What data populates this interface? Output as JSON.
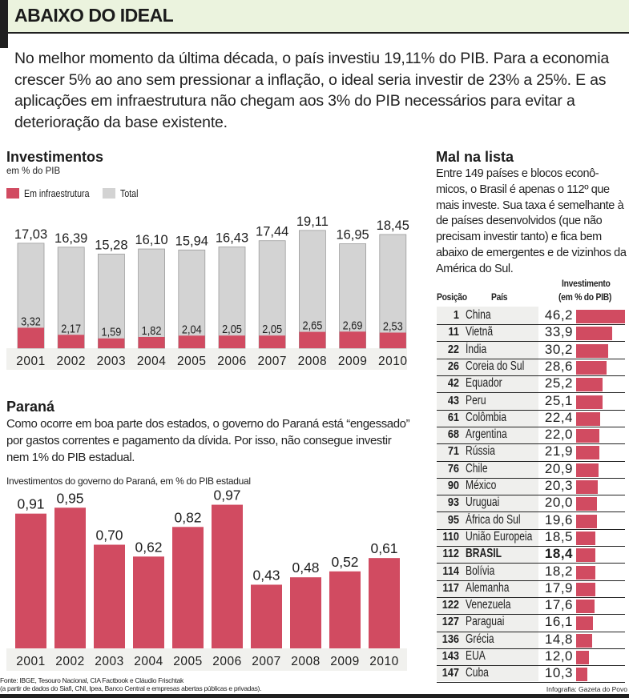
{
  "header": {
    "title": "ABAIXO DO IDEAL",
    "intro": "No melhor momento da última década, o país investiu 19,11% do PIB. Para a economia crescer 5% ao ano sem pressionar a inflação, o ideal seria investir de 23% a 25%. E as aplicações em infraestrutura não chegam aos 3% do PIB necessários para evitar a deterioração da base existente."
  },
  "colors": {
    "infra": "#d14b61",
    "total": "#d3d3d3",
    "axis_band": "#f1f1ee",
    "header_band": "#ebf3de"
  },
  "investimentos": {
    "title": "Investimentos",
    "subtitle": "em % do PIB",
    "legend": [
      {
        "label": "Em infraestrutura",
        "color": "#d14b61"
      },
      {
        "label": "Total",
        "color": "#d3d3d3"
      }
    ]
  },
  "parana": {
    "title": "Paraná",
    "text": "Como ocorre em boa parte dos estados, o governo do Paraná está “engessado” por gastos correntes e pagamento da dívida. Por isso, não consegue investir nem 1% do PIB estadual.",
    "chart_caption": "Investimentos do governo do Paraná, em % do PIB estadual"
  },
  "ranking": {
    "title": "Mal na lista",
    "text": "Entre 149 países e blocos econô-micos, o Brasil é apenas o 112º que mais investe. Sua taxa é semelhante à de países desenvolvidos (que não precisam investir tanto) e fica bem abaixo de emergentes e de vizinhos da América do Sul.",
    "col_position": "Posição",
    "col_country": "País",
    "col_invest_1": "Investimento",
    "col_invest_2": "(em % do PIB)"
  },
  "footer": {
    "source_1": "Fonte: IBGE, Tesouro Nacional, CIA Factbook e Cláudio Frischtak",
    "source_2": "(a partir de dados do Siafi, CNI, Ipea, Banco Central e empresas abertas públicas e privadas).",
    "credit": "Infografia: Gazeta do Povo"
  },
  "chart_data": [
    {
      "type": "bar",
      "title": "Investimentos",
      "subtitle": "em % do PIB",
      "categories": [
        "2001",
        "2002",
        "2003",
        "2004",
        "2005",
        "2006",
        "2007",
        "2008",
        "2009",
        "2010"
      ],
      "series": [
        {
          "name": "Total",
          "values": [
            17.03,
            16.39,
            15.28,
            16.1,
            15.94,
            16.43,
            17.44,
            19.11,
            16.95,
            18.45
          ],
          "labels": [
            "17,03",
            "16,39",
            "15,28",
            "16,10",
            "15,94",
            "16,43",
            "17,44",
            "19,11",
            "16,95",
            "18,45"
          ]
        },
        {
          "name": "Em infraestrutura",
          "values": [
            3.32,
            2.17,
            1.59,
            1.82,
            2.04,
            2.05,
            2.05,
            2.65,
            2.69,
            2.53
          ],
          "labels": [
            "3,32",
            "2,17",
            "1,59",
            "1,82",
            "2,04",
            "2,05",
            "2,05",
            "2,65",
            "2,69",
            "2,53"
          ]
        }
      ],
      "xlabel": "",
      "ylabel": "",
      "ylim": [
        0,
        20
      ],
      "grid": false,
      "legend": "top-left"
    },
    {
      "type": "bar",
      "title": "Investimentos do governo do Paraná, em % do PIB estadual",
      "categories": [
        "2001",
        "2002",
        "2003",
        "2004",
        "2005",
        "2006",
        "2007",
        "2008",
        "2009",
        "2010"
      ],
      "values": [
        0.91,
        0.95,
        0.7,
        0.62,
        0.82,
        0.97,
        0.43,
        0.48,
        0.52,
        0.61
      ],
      "labels": [
        "0,91",
        "0,95",
        "0,70",
        "0,62",
        "0,82",
        "0,97",
        "0,43",
        "0,48",
        "0,52",
        "0,61"
      ],
      "xlabel": "",
      "ylabel": "",
      "ylim": [
        0,
        1
      ],
      "grid": false
    },
    {
      "type": "table",
      "title": "Mal na lista",
      "columns": [
        "Posição",
        "País",
        "Investimento (em % do PIB)"
      ],
      "rows": [
        {
          "pos": "1",
          "country": "China",
          "value": 46.2,
          "label": "46,2"
        },
        {
          "pos": "11",
          "country": "Vietnã",
          "value": 33.9,
          "label": "33,9"
        },
        {
          "pos": "22",
          "country": "Índia",
          "value": 30.2,
          "label": "30,2"
        },
        {
          "pos": "26",
          "country": "Coreia do Sul",
          "value": 28.6,
          "label": "28,6"
        },
        {
          "pos": "42",
          "country": "Equador",
          "value": 25.2,
          "label": "25,2"
        },
        {
          "pos": "43",
          "country": "Peru",
          "value": 25.1,
          "label": "25,1"
        },
        {
          "pos": "61",
          "country": "Colômbia",
          "value": 22.4,
          "label": "22,4"
        },
        {
          "pos": "68",
          "country": "Argentina",
          "value": 22.0,
          "label": "22,0"
        },
        {
          "pos": "71",
          "country": "Rússia",
          "value": 21.9,
          "label": "21,9"
        },
        {
          "pos": "76",
          "country": "Chile",
          "value": 20.9,
          "label": "20,9"
        },
        {
          "pos": "90",
          "country": "México",
          "value": 20.3,
          "label": "20,3"
        },
        {
          "pos": "93",
          "country": "Uruguai",
          "value": 20.0,
          "label": "20,0"
        },
        {
          "pos": "95",
          "country": "África do Sul",
          "value": 19.6,
          "label": "19,6"
        },
        {
          "pos": "110",
          "country": "União Europeia",
          "value": 18.5,
          "label": "18,5"
        },
        {
          "pos": "112",
          "country": "BRASIL",
          "value": 18.4,
          "label": "18,4",
          "highlight": true
        },
        {
          "pos": "114",
          "country": "Bolívia",
          "value": 18.2,
          "label": "18,2"
        },
        {
          "pos": "117",
          "country": "Alemanha",
          "value": 17.9,
          "label": "17,9"
        },
        {
          "pos": "122",
          "country": "Venezuela",
          "value": 17.6,
          "label": "17,6"
        },
        {
          "pos": "127",
          "country": "Paraguai",
          "value": 16.1,
          "label": "16,1"
        },
        {
          "pos": "136",
          "country": "Grécia",
          "value": 14.8,
          "label": "14,8"
        },
        {
          "pos": "143",
          "country": "EUA",
          "value": 12.0,
          "label": "12,0"
        },
        {
          "pos": "147",
          "country": "Cuba",
          "value": 10.3,
          "label": "10,3"
        }
      ]
    }
  ]
}
